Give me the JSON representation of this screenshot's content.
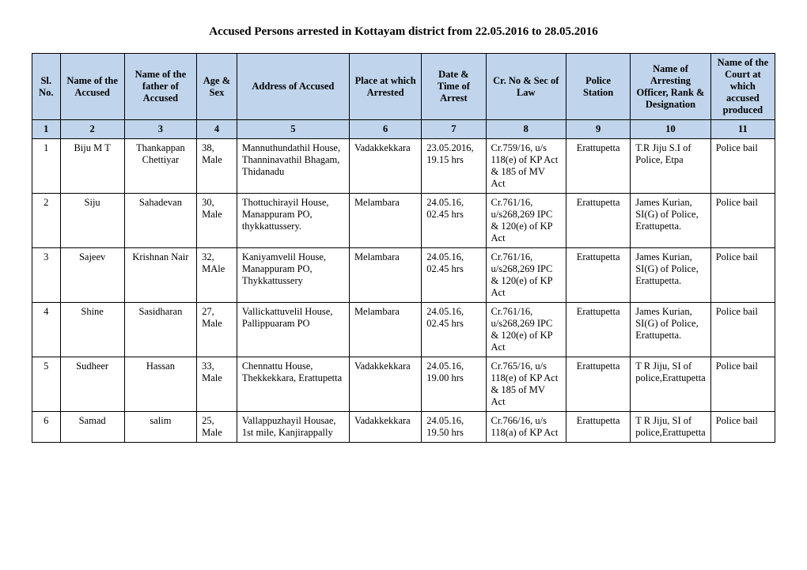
{
  "title": "Accused Persons arrested in   Kottayam  district from   22.05.2016 to 28.05.2016",
  "headers": {
    "sl": "Sl. No.",
    "name": "Name of the Accused",
    "fath": "Name of the father of Accused",
    "age": "Age & Sex",
    "addr": "Address of Accused",
    "place": "Place at which Arrested",
    "date": "Date & Time of Arrest",
    "law": "Cr. No & Sec of Law",
    "ps": "Police Station",
    "off": "Name of Arresting Officer, Rank & Designation",
    "court": "Name of the Court at which accused produced"
  },
  "numrow": [
    "1",
    "2",
    "3",
    "4",
    "5",
    "6",
    "7",
    "8",
    "9",
    "10",
    "11"
  ],
  "rows": [
    {
      "sl": "1",
      "name": "Biju M T",
      "fath": "Thankappan Chettiyar",
      "age": "38, Male",
      "addr": "Mannuthundathil House, Thanninavathil Bhagam, Thidanadu",
      "place": "Vadakkekkara",
      "date": "23.05.2016, 19.15 hrs",
      "law": "Cr.759/16, u/s 118(e) of KP Act & 185 of MV Act",
      "ps": "Erattupetta",
      "off": "T.R Jiju S.I of Police, Etpa",
      "court": "Police bail"
    },
    {
      "sl": "2",
      "name": "Siju",
      "fath": "Sahadevan",
      "age": "30, Male",
      "addr": "Thottuchirayil House, Manappuram PO, thykkattussery.",
      "place": "Melambara",
      "date": "24.05.16, 02.45 hrs",
      "law": "Cr.761/16, u/s268,269 IPC & 120(e) of KP Act",
      "ps": "Erattupetta",
      "off": "James Kurian, SI(G) of Police, Erattupetta.",
      "court": "Police bail"
    },
    {
      "sl": "3",
      "name": "Sajeev",
      "fath": "Krishnan Nair",
      "age": "32, MAle",
      "addr": "Kaniyamvelil House, Manappuram PO, Thykkattussery",
      "place": "Melambara",
      "date": "24.05.16, 02.45 hrs",
      "law": "Cr.761/16, u/s268,269 IPC & 120(e) of KP Act",
      "ps": "Erattupetta",
      "off": "James Kurian, SI(G) of Police, Erattupetta.",
      "court": "Police bail"
    },
    {
      "sl": "4",
      "name": "Shine",
      "fath": "Sasidharan",
      "age": "27, Male",
      "addr": "Vallickattuvelil House, Pallippuaram PO",
      "place": "Melambara",
      "date": "24.05.16, 02.45 hrs",
      "law": "Cr.761/16, u/s268,269 IPC & 120(e) of KP Act",
      "ps": "Erattupetta",
      "off": "James Kurian, SI(G) of Police, Erattupetta.",
      "court": "Police bail"
    },
    {
      "sl": "5",
      "name": "Sudheer",
      "fath": "Hassan",
      "age": "33, Male",
      "addr": "Chennattu House, Thekkekkara, Erattupetta",
      "place": "Vadakkekkara",
      "date": "24.05.16, 19.00 hrs",
      "law": "Cr.765/16, u/s 118(e) of KP Act & 185 of MV Act",
      "ps": "Erattupetta",
      "off": "T R Jiju, SI of police,Erattupetta",
      "court": "Police bail"
    },
    {
      "sl": "6",
      "name": "Samad",
      "fath": "salim",
      "age": "25, Male",
      "addr": "Vallappuzhayil Housae, 1st mile, Kanjirappally",
      "place": "Vadakkekkara",
      "date": "24.05.16, 19.50 hrs",
      "law": "Cr.766/16, u/s 118(a) of KP Act",
      "ps": "Erattupetta",
      "off": "T R Jiju, SI of police,Erattupetta",
      "court": "Police bail"
    }
  ]
}
